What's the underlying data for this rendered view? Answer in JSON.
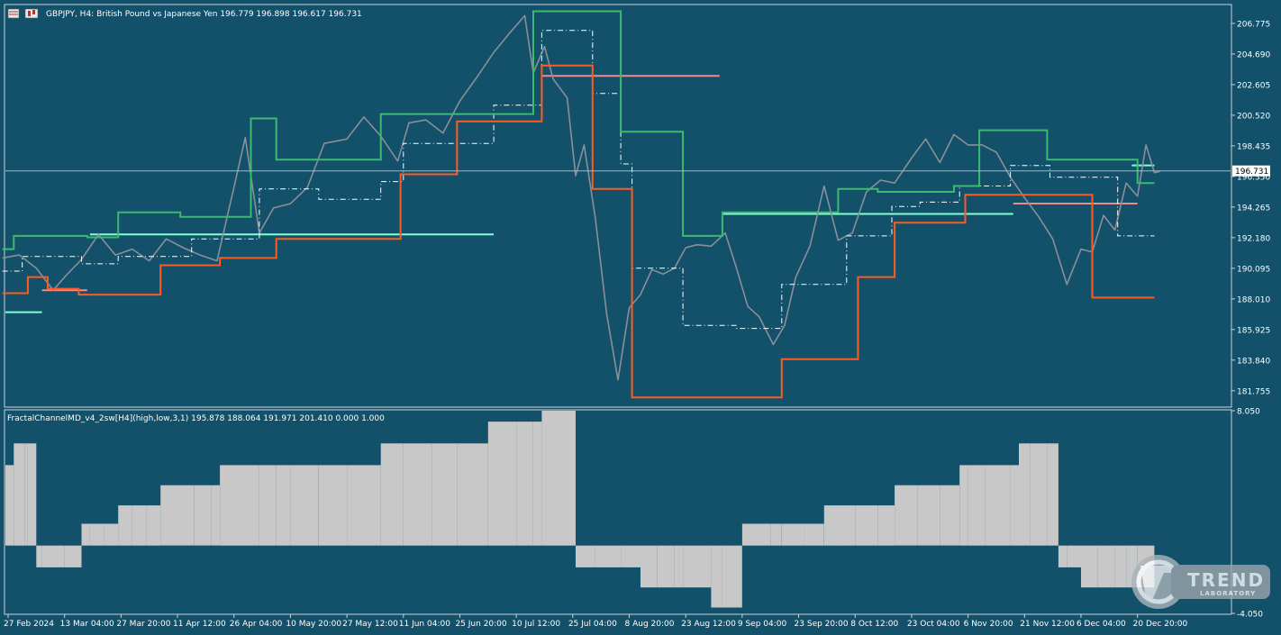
{
  "header": {
    "symbol_title": "GBPJPY, H4:  British Pound vs Japanese Yen  196.779 196.898 196.617 196.731",
    "indicator_title": "FractalChannelMD_v4_2sw[H4](high,low,3,1) 195.878 188.064 191.971 201.410 0.000 1.000"
  },
  "colors": {
    "background": "#135069",
    "price": "#8a8f99",
    "upper_channel": "#3cba6e",
    "lower_channel": "#ff5a1f",
    "middle_channel": "#ffffff",
    "cyan_level": "#7fffd4",
    "pink_level": "#f08a8a",
    "histogram": "#c8c8c8"
  },
  "logo": {
    "brand": "TREND",
    "sub": "LABORATORY"
  },
  "chart_data": [
    {
      "type": "line",
      "name": "price-panel",
      "ylim": [
        180.7,
        208.0
      ],
      "y_ticks": [
        "206.775",
        "204.690",
        "202.605",
        "200.520",
        "198.435",
        "196.350",
        "194.265",
        "192.180",
        "190.095",
        "188.010",
        "185.925",
        "183.840",
        "181.755"
      ],
      "current_price": "196.731",
      "x_labels": [
        "27 Feb 2024",
        "13 Mar 04:00",
        "27 Mar 20:00",
        "11 Apr 12:00",
        "26 Apr 04:00",
        "10 May 20:00",
        "27 May 12:00",
        "11 Jun 04:00",
        "25 Jun 20:00",
        "10 Jul 12:00",
        "25 Jul 04:00",
        "8 Aug 20:00",
        "23 Aug 12:00",
        "9 Sep 04:00",
        "23 Sep 20:00",
        "8 Oct 12:00",
        "23 Oct 04:00",
        "6 Nov 20:00",
        "21 Nov 12:00",
        "6 Dec 04:00",
        "20 Dec 20:00"
      ],
      "xlim": [
        0,
        20.5
      ],
      "price_path": [
        [
          -0.1,
          190.8
        ],
        [
          0.2,
          191.0
        ],
        [
          0.5,
          190.1
        ],
        [
          0.8,
          188.6
        ],
        [
          1.0,
          189.5
        ],
        [
          1.3,
          190.7
        ],
        [
          1.6,
          192.4
        ],
        [
          1.9,
          191.0
        ],
        [
          2.2,
          191.4
        ],
        [
          2.5,
          190.6
        ],
        [
          2.8,
          192.1
        ],
        [
          3.1,
          191.5
        ],
        [
          3.4,
          191.0
        ],
        [
          3.7,
          190.6
        ],
        [
          4.0,
          195.6
        ],
        [
          4.2,
          199.0
        ],
        [
          4.45,
          192.5
        ],
        [
          4.7,
          194.2
        ],
        [
          5.0,
          194.5
        ],
        [
          5.3,
          195.6
        ],
        [
          5.6,
          198.6
        ],
        [
          6.0,
          198.9
        ],
        [
          6.3,
          200.4
        ],
        [
          6.6,
          199.1
        ],
        [
          6.9,
          197.4
        ],
        [
          7.1,
          200.0
        ],
        [
          7.4,
          200.2
        ],
        [
          7.7,
          199.3
        ],
        [
          8.0,
          201.5
        ],
        [
          8.3,
          203.1
        ],
        [
          8.6,
          204.8
        ],
        [
          8.9,
          206.2
        ],
        [
          9.15,
          207.3
        ],
        [
          9.3,
          203.4
        ],
        [
          9.5,
          205.2
        ],
        [
          9.65,
          203.0
        ],
        [
          9.9,
          201.7
        ],
        [
          10.05,
          196.4
        ],
        [
          10.2,
          198.5
        ],
        [
          10.4,
          193.5
        ],
        [
          10.6,
          187.0
        ],
        [
          10.8,
          182.5
        ],
        [
          11.0,
          187.4
        ],
        [
          11.2,
          188.3
        ],
        [
          11.4,
          190.0
        ],
        [
          11.6,
          189.7
        ],
        [
          11.8,
          190.1
        ],
        [
          12.0,
          191.5
        ],
        [
          12.2,
          191.7
        ],
        [
          12.45,
          191.6
        ],
        [
          12.7,
          192.5
        ],
        [
          12.9,
          190.1
        ],
        [
          13.1,
          187.5
        ],
        [
          13.3,
          186.8
        ],
        [
          13.55,
          184.9
        ],
        [
          13.75,
          186.2
        ],
        [
          13.95,
          189.5
        ],
        [
          14.2,
          191.6
        ],
        [
          14.45,
          195.7
        ],
        [
          14.7,
          192.0
        ],
        [
          14.95,
          192.5
        ],
        [
          15.2,
          195.3
        ],
        [
          15.45,
          196.1
        ],
        [
          15.7,
          195.9
        ],
        [
          16.0,
          197.6
        ],
        [
          16.25,
          198.9
        ],
        [
          16.5,
          197.3
        ],
        [
          16.75,
          199.2
        ],
        [
          17.0,
          198.5
        ],
        [
          17.25,
          198.5
        ],
        [
          17.5,
          198.0
        ],
        [
          17.75,
          196.3
        ],
        [
          18.0,
          194.9
        ],
        [
          18.25,
          193.6
        ],
        [
          18.5,
          192.1
        ],
        [
          18.75,
          189.0
        ],
        [
          19.0,
          191.4
        ],
        [
          19.2,
          191.2
        ],
        [
          19.4,
          193.7
        ],
        [
          19.6,
          192.7
        ],
        [
          19.8,
          195.9
        ],
        [
          20.0,
          195.0
        ],
        [
          20.15,
          198.5
        ],
        [
          20.3,
          196.6
        ],
        [
          20.4,
          196.7
        ]
      ],
      "upper_channel": [
        [
          -0.1,
          191.4
        ],
        [
          0.1,
          191.4
        ],
        [
          0.1,
          192.3
        ],
        [
          1.4,
          192.3
        ],
        [
          1.4,
          192.2
        ],
        [
          1.95,
          192.2
        ],
        [
          1.95,
          193.9
        ],
        [
          3.05,
          193.9
        ],
        [
          3.05,
          193.6
        ],
        [
          4.3,
          193.6
        ],
        [
          4.3,
          200.3
        ],
        [
          4.75,
          200.3
        ],
        [
          4.75,
          197.5
        ],
        [
          6.6,
          197.5
        ],
        [
          6.6,
          200.6
        ],
        [
          9.3,
          200.6
        ],
        [
          9.3,
          207.6
        ],
        [
          10.85,
          207.6
        ],
        [
          10.85,
          199.4
        ],
        [
          11.95,
          199.4
        ],
        [
          11.95,
          192.3
        ],
        [
          12.65,
          192.3
        ],
        [
          12.65,
          193.9
        ],
        [
          14.7,
          193.9
        ],
        [
          14.7,
          195.5
        ],
        [
          15.4,
          195.5
        ],
        [
          15.4,
          195.3
        ],
        [
          16.75,
          195.3
        ],
        [
          16.75,
          195.7
        ],
        [
          17.2,
          195.7
        ],
        [
          17.2,
          199.5
        ],
        [
          18.4,
          199.5
        ],
        [
          18.4,
          197.5
        ],
        [
          20.0,
          197.5
        ],
        [
          20.0,
          195.9
        ],
        [
          20.3,
          195.9
        ]
      ],
      "lower_channel": [
        [
          -0.1,
          188.4
        ],
        [
          0.35,
          188.4
        ],
        [
          0.35,
          189.5
        ],
        [
          0.7,
          189.5
        ],
        [
          0.7,
          188.7
        ],
        [
          1.25,
          188.7
        ],
        [
          1.25,
          188.3
        ],
        [
          2.7,
          188.3
        ],
        [
          2.7,
          190.3
        ],
        [
          3.75,
          190.3
        ],
        [
          3.75,
          190.8
        ],
        [
          4.75,
          190.8
        ],
        [
          4.75,
          192.1
        ],
        [
          6.95,
          192.1
        ],
        [
          6.95,
          196.5
        ],
        [
          7.95,
          196.5
        ],
        [
          7.95,
          200.1
        ],
        [
          9.45,
          200.1
        ],
        [
          9.45,
          203.9
        ],
        [
          10.35,
          203.9
        ],
        [
          10.35,
          195.5
        ],
        [
          11.05,
          195.5
        ],
        [
          11.05,
          181.3
        ],
        [
          13.7,
          181.3
        ],
        [
          13.7,
          183.9
        ],
        [
          15.05,
          183.9
        ],
        [
          15.05,
          189.5
        ],
        [
          15.7,
          189.5
        ],
        [
          15.7,
          193.2
        ],
        [
          16.95,
          193.2
        ],
        [
          16.95,
          195.1
        ],
        [
          19.2,
          195.1
        ],
        [
          19.2,
          188.1
        ],
        [
          20.3,
          188.1
        ]
      ],
      "middle_channel": [
        [
          -0.1,
          189.9
        ],
        [
          0.25,
          189.9
        ],
        [
          0.25,
          190.9
        ],
        [
          1.3,
          190.9
        ],
        [
          1.3,
          190.4
        ],
        [
          1.95,
          190.4
        ],
        [
          1.95,
          190.9
        ],
        [
          3.25,
          190.9
        ],
        [
          3.25,
          192.1
        ],
        [
          4.45,
          192.1
        ],
        [
          4.45,
          195.5
        ],
        [
          5.5,
          195.5
        ],
        [
          5.5,
          194.8
        ],
        [
          6.6,
          194.8
        ],
        [
          6.6,
          196.0
        ],
        [
          7.0,
          196.0
        ],
        [
          7.0,
          198.6
        ],
        [
          8.6,
          198.6
        ],
        [
          8.6,
          201.2
        ],
        [
          9.45,
          201.2
        ],
        [
          9.45,
          206.3
        ],
        [
          10.35,
          206.3
        ],
        [
          10.35,
          202.0
        ],
        [
          10.85,
          202.0
        ],
        [
          10.85,
          197.2
        ],
        [
          11.05,
          197.2
        ],
        [
          11.05,
          190.1
        ],
        [
          11.95,
          190.1
        ],
        [
          11.95,
          186.2
        ],
        [
          12.9,
          186.2
        ],
        [
          12.9,
          186.0
        ],
        [
          13.7,
          186.0
        ],
        [
          13.7,
          189.0
        ],
        [
          14.85,
          189.0
        ],
        [
          14.85,
          192.3
        ],
        [
          15.65,
          192.3
        ],
        [
          15.65,
          194.3
        ],
        [
          16.15,
          194.3
        ],
        [
          16.15,
          194.6
        ],
        [
          16.85,
          194.6
        ],
        [
          16.85,
          195.7
        ],
        [
          17.75,
          195.7
        ],
        [
          17.75,
          197.1
        ],
        [
          18.45,
          197.1
        ],
        [
          18.45,
          196.3
        ],
        [
          19.65,
          196.3
        ],
        [
          19.65,
          192.3
        ],
        [
          20.3,
          192.3
        ]
      ],
      "cyan_levels": [
        [
          1.45,
          8.6,
          192.4
        ],
        [
          -0.1,
          0.6,
          187.1
        ],
        [
          12.65,
          17.8,
          193.8
        ],
        [
          19.9,
          20.3,
          197.1
        ]
      ],
      "pink_levels": [
        [
          0.6,
          1.4,
          188.6
        ],
        [
          9.45,
          12.6,
          203.2
        ],
        [
          17.8,
          20.0,
          194.5
        ]
      ]
    },
    {
      "type": "bar",
      "name": "histogram-panel",
      "ylim": [
        -4.05,
        8.05
      ],
      "y_ticks": [
        "8.050",
        "-4.050"
      ],
      "values": [
        4.8,
        4.8,
        6.1,
        6.1,
        6.1,
        6.1,
        -1.3,
        -1.3,
        -1.3,
        1.3,
        1.3,
        1.3,
        2.4,
        2.4,
        2.4,
        3.6,
        3.6,
        3.6,
        3.6,
        4.8,
        4.8,
        4.8,
        4.8,
        4.8,
        4.8,
        4.8,
        6.1,
        6.1,
        6.1,
        6.1,
        7.4,
        7.4,
        7.4,
        8.05,
        -1.3,
        -1.3,
        -1.3,
        -2.5,
        -2.5,
        -2.5,
        -2.5,
        -3.7,
        -3.7,
        1.3,
        1.3,
        1.3,
        1.3,
        2.4,
        2.4,
        2.4,
        2.4,
        3.6,
        3.6,
        3.6,
        4.8,
        4.8,
        4.8,
        4.8,
        6.1,
        6.1,
        6.1,
        -1.3,
        -1.3,
        -2.5,
        -2.5,
        -2.5,
        -2.5,
        -2.5,
        -2.5,
        1.2
      ],
      "bar_breaks": [
        -0.1,
        0.0,
        0.1,
        0.2,
        0.3,
        0.35,
        0.5,
        0.6,
        1.0,
        1.3,
        1.45,
        1.7,
        1.95,
        2.2,
        2.45,
        2.7,
        3.0,
        3.3,
        3.6,
        3.75,
        4.1,
        4.45,
        4.75,
        5.0,
        5.5,
        6.0,
        6.6,
        7.0,
        7.5,
        7.95,
        8.5,
        9.0,
        9.3,
        9.45,
        10.05,
        10.4,
        10.85,
        11.2,
        11.5,
        11.8,
        11.95,
        12.45,
        12.65,
        13.0,
        13.5,
        13.7,
        14.1,
        14.45,
        14.7,
        15.0,
        15.4,
        15.7,
        16.1,
        16.5,
        16.85,
        17.0,
        17.3,
        17.75,
        17.9,
        18.1,
        18.4,
        18.6,
        18.75,
        19.0,
        19.3,
        19.6,
        19.8,
        20.0,
        20.1,
        20.3
      ]
    }
  ]
}
